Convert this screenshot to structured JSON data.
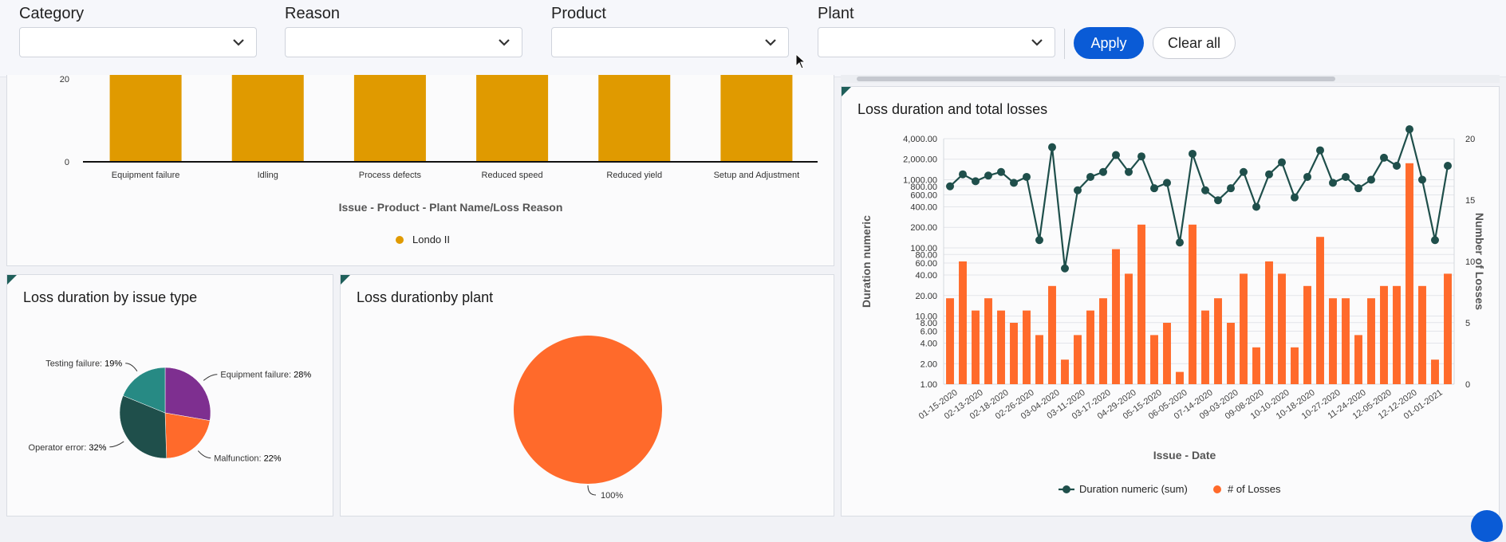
{
  "filters": {
    "category_label": "Category",
    "reason_label": "Reason",
    "product_label": "Product",
    "plant_label": "Plant",
    "apply_label": "Apply",
    "clear_label": "Clear all"
  },
  "colors": {
    "accent": "#0a5bd6",
    "bar_gold": "#e09a00",
    "orange": "#ff6a2b",
    "teal_dark": "#1f4f4b",
    "purple": "#7e2f90",
    "teal": "#278a84"
  },
  "chart_data": [
    {
      "type": "bar",
      "title": "",
      "categories": [
        "Equipment failure",
        "Idling",
        "Process defects",
        "Reduced speed",
        "Reduced yield",
        "Setup and Adjustment"
      ],
      "series": [
        {
          "name": "Londo II",
          "values": [
            20,
            20,
            20,
            20,
            20,
            20
          ]
        }
      ],
      "xlabel": "Issue - Product - Plant Name/Loss Reason",
      "ylabel": "",
      "yticks": [
        "0",
        "20"
      ],
      "ylim": [
        0,
        20
      ],
      "legend": "bottom"
    },
    {
      "type": "pie",
      "title": "Loss duration by issue type",
      "slices": [
        {
          "name": "Equipment failure",
          "pct_label": "28%",
          "value": 28,
          "color": "#7e2f90"
        },
        {
          "name": "Malfunction",
          "pct_label": "22%",
          "value": 22,
          "color": "#ff6a2b"
        },
        {
          "name": "Operator error",
          "pct_label": "32%",
          "value": 32,
          "color": "#1f4f4b"
        },
        {
          "name": "Testing failure",
          "pct_label": "19%",
          "value": 19,
          "color": "#278a84"
        }
      ]
    },
    {
      "type": "pie",
      "title": "Loss durationby plant",
      "slices": [
        {
          "name": "",
          "pct_label": "100%",
          "value": 100,
          "color": "#ff6a2b"
        }
      ]
    },
    {
      "type": "bar",
      "title": "Loss duration and total losses",
      "xlabel": "Issue - Date",
      "ylabel": "Duration numeric",
      "y2label": "Number of Losses",
      "x_tick_labels": [
        "01-15-2020",
        "02-13-2020",
        "02-18-2020",
        "02-26-2020",
        "03-04-2020",
        "03-11-2020",
        "03-17-2020",
        "04-29-2020",
        "05-15-2020",
        "06-05-2020",
        "07-14-2020",
        "09-03-2020",
        "09-08-2020",
        "10-10-2020",
        "10-18-2020",
        "10-27-2020",
        "11-24-2020",
        "12-05-2020",
        "12-12-2020",
        "01-01-2021"
      ],
      "y_ticks": [
        "1.00",
        "2.00",
        "4.00",
        "6.00",
        "8.00",
        "10.00",
        "20.00",
        "40.00",
        "60.00",
        "80.00",
        "100.00",
        "200.00",
        "400.00",
        "600.00",
        "800.00",
        "1,000.00",
        "2,000.00",
        "4,000.00"
      ],
      "y2_ticks": [
        "0",
        "5",
        "10",
        "15",
        "20"
      ],
      "y_scale": "log",
      "series": [
        {
          "name": "Duration numeric (sum)",
          "type": "line",
          "values": [
            800,
            1200,
            950,
            1150,
            1300,
            900,
            1100,
            130,
            3000,
            50,
            700,
            1100,
            1300,
            2300,
            1300,
            2200,
            750,
            900,
            120,
            2400,
            700,
            500,
            750,
            1300,
            400,
            1200,
            1800,
            550,
            1100,
            2700,
            900,
            1100,
            750,
            1000,
            2100,
            1600,
            5500,
            1000,
            130,
            1600
          ]
        },
        {
          "name": "# of Losses",
          "type": "bar",
          "values": [
            7,
            10,
            6,
            7,
            6,
            5,
            6,
            4,
            8,
            2,
            4,
            6,
            7,
            11,
            9,
            13,
            4,
            5,
            1,
            13,
            6,
            7,
            5,
            9,
            3,
            10,
            9,
            3,
            8,
            12,
            7,
            7,
            4,
            7,
            8,
            8,
            18,
            8,
            2,
            9
          ]
        }
      ],
      "legend": "bottom"
    }
  ]
}
